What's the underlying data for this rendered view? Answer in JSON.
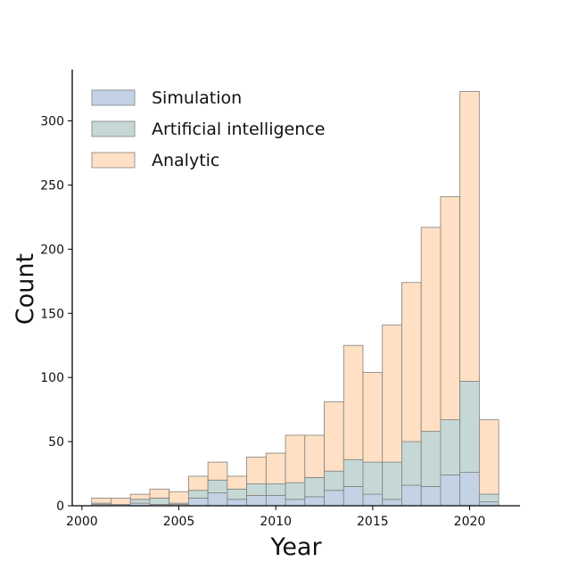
{
  "chart_data": {
    "type": "bar",
    "stacked": true,
    "bins_start": 2000.5,
    "bin_width": 1,
    "x": [
      2001,
      2002,
      2003,
      2004,
      2005,
      2006,
      2007,
      2008,
      2009,
      2010,
      2011,
      2012,
      2013,
      2014,
      2015,
      2016,
      2017,
      2018,
      2019,
      2020,
      2021
    ],
    "series": [
      {
        "name": "Simulation",
        "color": "#c3d3e5",
        "values": [
          1,
          1,
          2,
          1,
          1,
          6,
          10,
          5,
          8,
          8,
          5,
          7,
          12,
          15,
          9,
          5,
          16,
          15,
          24,
          26,
          3
        ]
      },
      {
        "name": "Artificial intelligence",
        "color": "#c5d8d6",
        "values": [
          1,
          0,
          3,
          5,
          1,
          6,
          10,
          8,
          9,
          9,
          13,
          15,
          15,
          21,
          25,
          29,
          34,
          43,
          43,
          71,
          6
        ]
      },
      {
        "name": "Analytic",
        "color": "#ffe0c4",
        "values": [
          4,
          5,
          4,
          7,
          9,
          11,
          14,
          10,
          21,
          24,
          37,
          33,
          54,
          89,
          70,
          107,
          124,
          159,
          174,
          226,
          58
        ]
      }
    ],
    "xlabel": "Year",
    "ylabel": "Count",
    "xticks": [
      2000,
      2005,
      2010,
      2015,
      2020
    ],
    "yticks": [
      0,
      50,
      100,
      150,
      200,
      250,
      300
    ],
    "xlim": [
      1999.5,
      2022.6
    ],
    "ylim": [
      0,
      340
    ],
    "grid": false,
    "legend_position": "top-left",
    "edge_color": "#808080"
  }
}
